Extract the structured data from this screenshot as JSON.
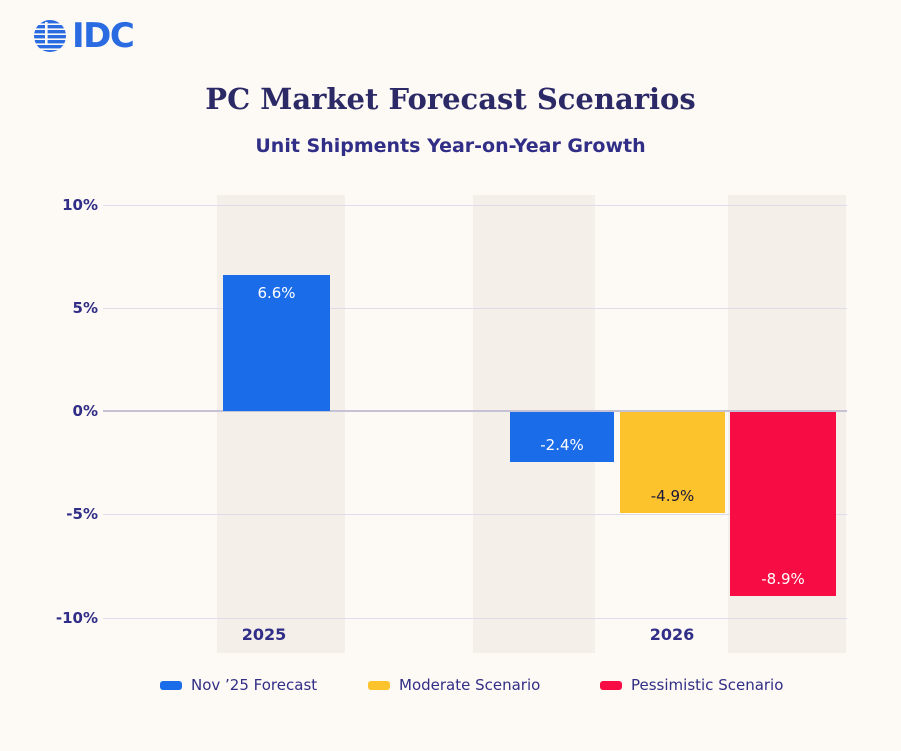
{
  "brand": {
    "logo_text": "IDC",
    "logo_color": "#2A6BE2"
  },
  "header": {
    "title": "PC Market Forecast Scenarios",
    "subtitle": "Unit Shipments Year-on-Year Growth"
  },
  "colors": {
    "background": "#FDF9F4",
    "column_band": "#F4EFE9",
    "gridline": "#DFDBEA",
    "zero_line": "#C6C2D5",
    "navy_title": "#2B2966",
    "navy_text": "#312E87",
    "blue": "#1B6CE9",
    "yellow": "#FDC32D",
    "red": "#F70D44"
  },
  "chart_data": {
    "type": "bar",
    "title": "PC Market Forecast Scenarios",
    "subtitle": "Unit Shipments Year-on-Year Growth",
    "categories": [
      "2025",
      "2026"
    ],
    "series": [
      {
        "name": "Nov ’25 Forecast",
        "color": "#1B6CE9",
        "label_color": "#FFFFFF",
        "values": [
          6.6,
          -2.4
        ],
        "value_labels": [
          "6.6%",
          "-2.4%"
        ]
      },
      {
        "name": "Moderate Scenario",
        "color": "#FDC32D",
        "label_color": "#18163A",
        "values": [
          null,
          -4.9
        ],
        "value_labels": [
          null,
          "-4.9%"
        ]
      },
      {
        "name": "Pessimistic Scenario",
        "color": "#F70D44",
        "label_color": "#FFFFFF",
        "values": [
          null,
          -8.9
        ],
        "value_labels": [
          null,
          "-8.9%"
        ]
      }
    ],
    "ylabel": "",
    "xlabel": "",
    "ylim": [
      -10,
      10
    ],
    "yticks": [
      "10%",
      "5%",
      "0%",
      "-5%",
      "-10%"
    ],
    "ytick_values": [
      10,
      5,
      0,
      -5,
      -10
    ],
    "grid": true,
    "legend_position": "bottom"
  }
}
